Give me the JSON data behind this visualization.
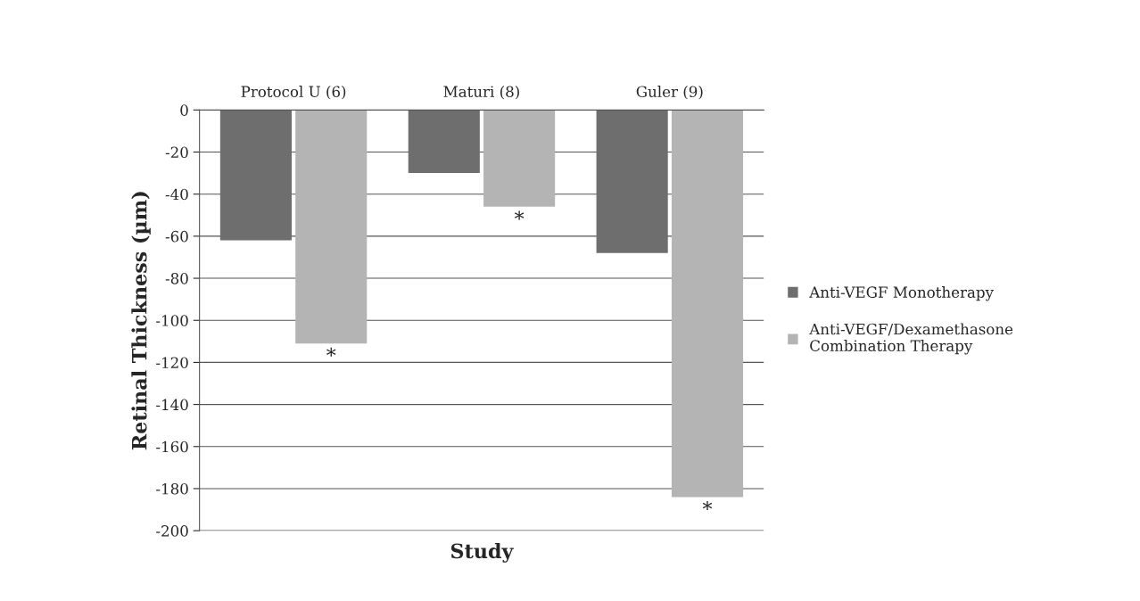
{
  "chart_data": {
    "type": "bar",
    "xlabel": "Study",
    "ylabel": "Retinal Thickness (µm)",
    "categories": [
      "Protocol U (6)",
      "Maturi (8)",
      "Guler (9)"
    ],
    "series": [
      {
        "name": "Anti-VEGF Monotherapy",
        "color": "#6e6e6e",
        "values": [
          -62,
          -30,
          -68
        ]
      },
      {
        "name": "Anti-VEGF/Dexamethasone Combination Therapy",
        "color": "#b4b4b4",
        "values": [
          -111,
          -46,
          -184
        ]
      }
    ],
    "ylim": [
      -200,
      0
    ],
    "yticks": [
      0,
      -20,
      -40,
      -60,
      -80,
      -100,
      -120,
      -140,
      -160,
      -180,
      -200
    ],
    "grid": "y",
    "legend": "right",
    "annotations": [
      {
        "text": "*",
        "x": "Protocol U (6)",
        "y": -111
      },
      {
        "text": "*",
        "x": "Maturi (8)",
        "y": -46
      },
      {
        "text": "*",
        "x": "Guler (9)",
        "y": -184
      }
    ]
  }
}
